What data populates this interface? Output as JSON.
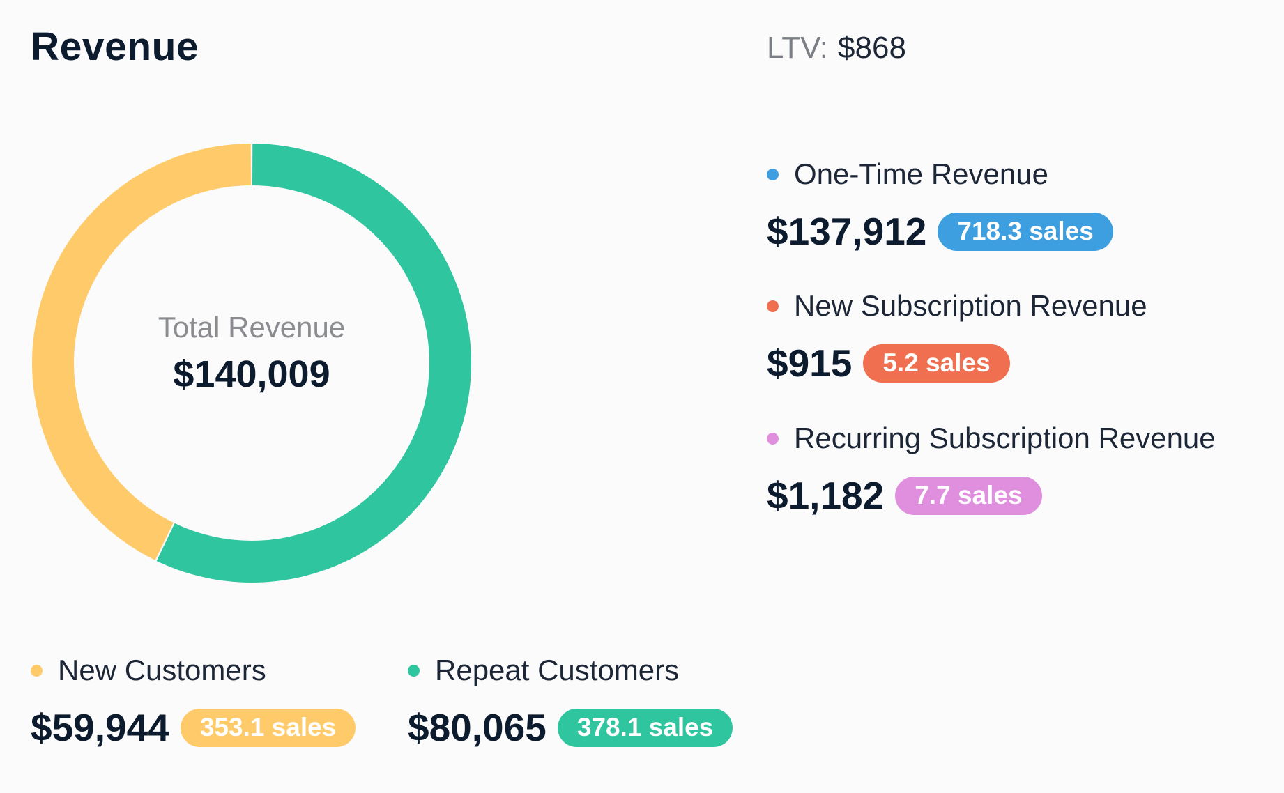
{
  "title": "Revenue",
  "ltv": {
    "label": "LTV:",
    "value": "$868"
  },
  "chart_data": {
    "type": "pie",
    "center_label": "Total Revenue",
    "center_value": "$140,009",
    "slices": [
      {
        "name": "Repeat Customers",
        "value": 80065,
        "color": "#2ec59f"
      },
      {
        "name": "New Customers",
        "value": 59944,
        "color": "#ffcb6a"
      }
    ]
  },
  "revenue_types": [
    {
      "name": "One-Time Revenue",
      "amount": "$137,912",
      "sales": "718.3 sales",
      "color": "#3d9fe0"
    },
    {
      "name": "New Subscription Revenue",
      "amount": "$915",
      "sales": "5.2 sales",
      "color": "#ef6f50"
    },
    {
      "name": "Recurring Subscription Revenue",
      "amount": "$1,182",
      "sales": "7.7 sales",
      "color": "#df8fde"
    }
  ],
  "customers": [
    {
      "name": "New Customers",
      "amount": "$59,944",
      "sales": "353.1 sales",
      "color": "#ffcb6a"
    },
    {
      "name": "Repeat Customers",
      "amount": "$80,065",
      "sales": "378.1 sales",
      "color": "#2ec59f"
    }
  ]
}
